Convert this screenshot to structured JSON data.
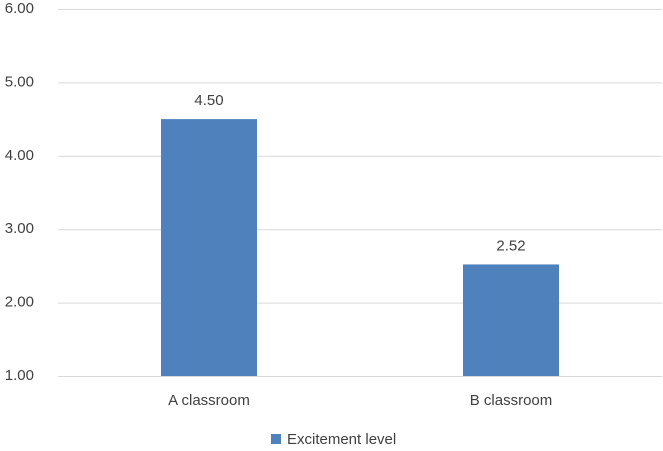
{
  "chart_data": {
    "type": "bar",
    "categories": [
      "A classroom",
      "B classroom"
    ],
    "series": [
      {
        "name": "Excitement level",
        "color": "#4f81bd",
        "values": [
          4.5,
          2.52
        ],
        "value_labels": [
          "4.50",
          "2.52"
        ]
      }
    ],
    "ylim": [
      1,
      6
    ],
    "yticks": [
      {
        "value": 1,
        "label": "1.00"
      },
      {
        "value": 2,
        "label": "2.00"
      },
      {
        "value": 3,
        "label": "3.00"
      },
      {
        "value": 4,
        "label": "4.00"
      },
      {
        "value": 5,
        "label": "5.00"
      },
      {
        "value": 6,
        "label": "6.00"
      }
    ],
    "grid": true,
    "legend": "bottom"
  }
}
